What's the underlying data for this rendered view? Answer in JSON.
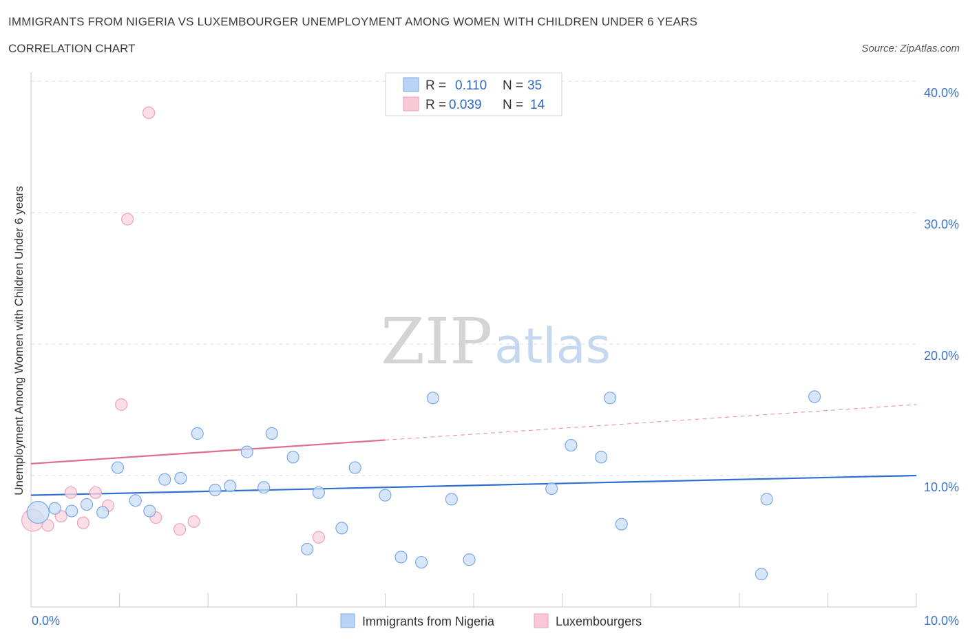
{
  "header": {
    "title": "IMMIGRANTS FROM NIGERIA VS LUXEMBOURGER UNEMPLOYMENT AMONG WOMEN WITH CHILDREN UNDER 6 YEARS",
    "subtitle": "CORRELATION CHART",
    "source": "Source: ZipAtlas.com"
  },
  "watermark": {
    "zip": "ZIP",
    "atlas": "atlas"
  },
  "legend": {
    "rows": [
      {
        "r_label": "R =",
        "r_value": "0.110",
        "n_label": "N =",
        "n_value": "35",
        "color": "#b9d3f5"
      },
      {
        "r_label": "R =",
        "r_value": "0.039",
        "n_label": "N =",
        "n_value": "14",
        "color": "#f8c8d6"
      }
    ]
  },
  "bottom_legend": [
    "Immigrants from Nigeria",
    "Luxembourgers"
  ],
  "chart_data": {
    "type": "scatter",
    "ylabel": "Unemployment Among Women with Children Under 6 years",
    "xlim": [
      0,
      10
    ],
    "ylim": [
      0,
      40
    ],
    "x_tick_labels": [
      "0.0%",
      "10.0%"
    ],
    "y_ticks": [
      10,
      20,
      30,
      40
    ],
    "y_tick_labels": [
      "10.0%",
      "20.0%",
      "30.0%",
      "40.0%"
    ],
    "grid": true,
    "series": [
      {
        "name": "Immigrants from Nigeria",
        "color": "#7aa8e6",
        "fill": "#c9ddf6",
        "line_color": "#2f6fd0",
        "trend": {
          "x": [
            0,
            10
          ],
          "y": [
            8.5,
            10.0
          ],
          "dashed_from": null
        },
        "points": [
          {
            "x": 0.08,
            "y": 7.2,
            "big": true
          },
          {
            "x": 0.27,
            "y": 7.5
          },
          {
            "x": 0.46,
            "y": 7.3
          },
          {
            "x": 0.63,
            "y": 7.8
          },
          {
            "x": 0.81,
            "y": 7.2
          },
          {
            "x": 0.98,
            "y": 10.6
          },
          {
            "x": 1.18,
            "y": 8.1
          },
          {
            "x": 1.34,
            "y": 7.3
          },
          {
            "x": 1.51,
            "y": 9.7
          },
          {
            "x": 1.69,
            "y": 9.8
          },
          {
            "x": 1.88,
            "y": 13.2
          },
          {
            "x": 2.08,
            "y": 8.9
          },
          {
            "x": 2.25,
            "y": 9.2
          },
          {
            "x": 2.44,
            "y": 11.8
          },
          {
            "x": 2.63,
            "y": 9.1
          },
          {
            "x": 2.72,
            "y": 13.2
          },
          {
            "x": 2.96,
            "y": 11.4
          },
          {
            "x": 3.12,
            "y": 4.4
          },
          {
            "x": 3.25,
            "y": 8.7
          },
          {
            "x": 3.51,
            "y": 6.0
          },
          {
            "x": 3.66,
            "y": 10.6
          },
          {
            "x": 4.0,
            "y": 8.5
          },
          {
            "x": 4.18,
            "y": 3.8
          },
          {
            "x": 4.41,
            "y": 3.4
          },
          {
            "x": 4.54,
            "y": 15.9
          },
          {
            "x": 4.75,
            "y": 8.2
          },
          {
            "x": 4.95,
            "y": 3.6
          },
          {
            "x": 5.88,
            "y": 9.0
          },
          {
            "x": 6.1,
            "y": 12.3
          },
          {
            "x": 6.44,
            "y": 11.4
          },
          {
            "x": 6.54,
            "y": 15.9
          },
          {
            "x": 6.67,
            "y": 6.3
          },
          {
            "x": 8.25,
            "y": 2.5
          },
          {
            "x": 8.31,
            "y": 8.2
          },
          {
            "x": 8.85,
            "y": 16.0
          }
        ]
      },
      {
        "name": "Luxembourgers",
        "color": "#eea2b8",
        "fill": "#f9d3de",
        "line_color": "#e06b91",
        "trend": {
          "x": [
            0,
            10
          ],
          "y": [
            10.9,
            15.4
          ],
          "solid_until": 4.0
        },
        "points": [
          {
            "x": 0.02,
            "y": 6.6,
            "big": true
          },
          {
            "x": 0.19,
            "y": 6.2
          },
          {
            "x": 0.34,
            "y": 6.9
          },
          {
            "x": 0.45,
            "y": 8.7
          },
          {
            "x": 0.59,
            "y": 6.4
          },
          {
            "x": 0.73,
            "y": 8.7
          },
          {
            "x": 0.87,
            "y": 7.7
          },
          {
            "x": 1.02,
            "y": 15.4
          },
          {
            "x": 1.09,
            "y": 29.5
          },
          {
            "x": 1.33,
            "y": 37.6
          },
          {
            "x": 1.41,
            "y": 6.8
          },
          {
            "x": 1.68,
            "y": 5.9
          },
          {
            "x": 1.84,
            "y": 6.5
          },
          {
            "x": 3.25,
            "y": 5.3
          }
        ]
      }
    ]
  }
}
